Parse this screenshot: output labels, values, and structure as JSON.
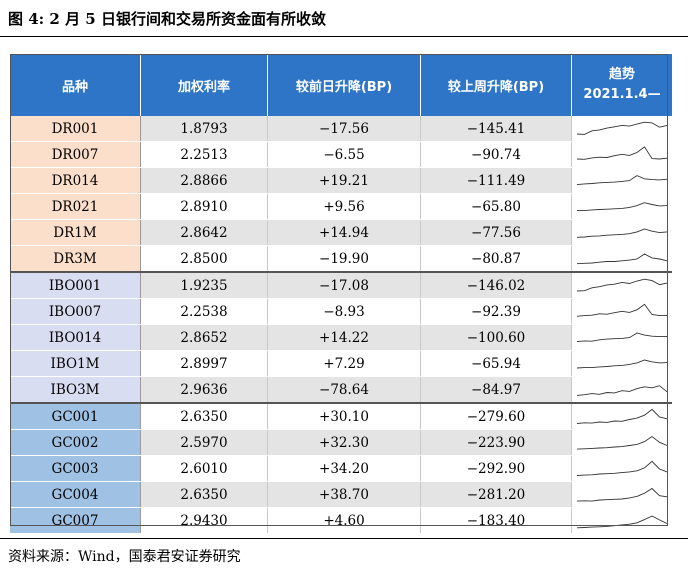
{
  "title": "图 4:  2 月 5 日银行间和交易所资金面有所收敛",
  "source": "资料来源：Wind，国泰君安证券研究",
  "table": {
    "headers": [
      "品种",
      "加权利率",
      "较前日升降(BP)",
      "较上周升降(BP)"
    ],
    "trend_header": {
      "line1": "趋势",
      "line2": "2021.1.4—"
    },
    "rows": [
      {
        "name": "DR001",
        "rate": "1.8793",
        "day_change": "−17.56",
        "week_change": "−145.41",
        "group": "dr"
      },
      {
        "name": "DR007",
        "rate": "2.2513",
        "day_change": "−6.55",
        "week_change": "−90.74",
        "group": "dr"
      },
      {
        "name": "DR014",
        "rate": "2.8866",
        "day_change": "+19.21",
        "week_change": "−111.49",
        "group": "dr"
      },
      {
        "name": "DR021",
        "rate": "2.8910",
        "day_change": "+9.56",
        "week_change": "−65.80",
        "group": "dr"
      },
      {
        "name": "DR1M",
        "rate": "2.8642",
        "day_change": "+14.94",
        "week_change": "−77.56",
        "group": "dr"
      },
      {
        "name": "DR3M",
        "rate": "2.8500",
        "day_change": "−19.90",
        "week_change": "−80.87",
        "group": "dr"
      },
      {
        "name": "IBO001",
        "rate": "1.9235",
        "day_change": "−17.08",
        "week_change": "−146.02",
        "group": "ibo"
      },
      {
        "name": "IBO007",
        "rate": "2.2538",
        "day_change": "−8.93",
        "week_change": "−92.39",
        "group": "ibo"
      },
      {
        "name": "IBO014",
        "rate": "2.8652",
        "day_change": "+14.22",
        "week_change": "−100.60",
        "group": "ibo"
      },
      {
        "name": "IBO1M",
        "rate": "2.8997",
        "day_change": "+7.29",
        "week_change": "−65.94",
        "group": "ibo"
      },
      {
        "name": "IBO3M",
        "rate": "2.9636",
        "day_change": "−78.64",
        "week_change": "−84.97",
        "group": "ibo"
      },
      {
        "name": "GC001",
        "rate": "2.6350",
        "day_change": "+30.10",
        "week_change": "−279.60",
        "group": "gc"
      },
      {
        "name": "GC002",
        "rate": "2.5970",
        "day_change": "+32.30",
        "week_change": "−223.90",
        "group": "gc"
      },
      {
        "name": "GC003",
        "rate": "2.6010",
        "day_change": "+34.20",
        "week_change": "−292.90",
        "group": "gc"
      },
      {
        "name": "GC004",
        "rate": "2.6350",
        "day_change": "+38.70",
        "week_change": "−281.20",
        "group": "gc"
      },
      {
        "name": "GC007",
        "rate": "2.9430",
        "day_change": "+4.60",
        "week_change": "−183.40",
        "group": "gc"
      }
    ]
  },
  "sparklines": [
    [
      0.22,
      0.2,
      0.4,
      0.45,
      0.55,
      0.62,
      0.7,
      0.66,
      0.78,
      0.88,
      0.84,
      0.6,
      0.7
    ],
    [
      0.28,
      0.26,
      0.34,
      0.38,
      0.36,
      0.46,
      0.54,
      0.48,
      0.64,
      0.95,
      0.3,
      0.28,
      0.32
    ],
    [
      0.3,
      0.34,
      0.36,
      0.4,
      0.42,
      0.44,
      0.48,
      0.52,
      0.8,
      0.62,
      0.58,
      0.56,
      0.6
    ],
    [
      0.3,
      0.3,
      0.34,
      0.36,
      0.38,
      0.4,
      0.42,
      0.48,
      0.58,
      0.74,
      0.64,
      0.56,
      0.58
    ],
    [
      0.26,
      0.28,
      0.32,
      0.34,
      0.38,
      0.4,
      0.42,
      0.46,
      0.56,
      0.72,
      0.6,
      0.52,
      0.56
    ],
    [
      0.24,
      0.26,
      0.28,
      0.32,
      0.36,
      0.36,
      0.4,
      0.44,
      0.5,
      0.78,
      0.56,
      0.5,
      0.4
    ],
    [
      0.22,
      0.24,
      0.4,
      0.46,
      0.56,
      0.6,
      0.7,
      0.64,
      0.78,
      0.88,
      0.8,
      0.58,
      0.66
    ],
    [
      0.26,
      0.3,
      0.32,
      0.4,
      0.38,
      0.46,
      0.54,
      0.48,
      0.62,
      0.92,
      0.36,
      0.3,
      0.3
    ],
    [
      0.3,
      0.34,
      0.32,
      0.4,
      0.44,
      0.46,
      0.48,
      0.52,
      0.78,
      0.66,
      0.6,
      0.58,
      0.58
    ],
    [
      0.28,
      0.3,
      0.3,
      0.34,
      0.36,
      0.4,
      0.42,
      0.48,
      0.56,
      0.72,
      0.62,
      0.56,
      0.58
    ],
    [
      0.2,
      0.24,
      0.3,
      0.26,
      0.36,
      0.34,
      0.46,
      0.42,
      0.58,
      0.68,
      0.62,
      0.74,
      0.4
    ],
    [
      0.14,
      0.18,
      0.16,
      0.22,
      0.2,
      0.28,
      0.26,
      0.36,
      0.44,
      0.6,
      0.92,
      0.5,
      0.4
    ],
    [
      0.16,
      0.18,
      0.2,
      0.22,
      0.24,
      0.28,
      0.3,
      0.36,
      0.42,
      0.58,
      0.86,
      0.54,
      0.36
    ],
    [
      0.14,
      0.16,
      0.18,
      0.22,
      0.24,
      0.26,
      0.3,
      0.34,
      0.4,
      0.56,
      0.92,
      0.5,
      0.34
    ],
    [
      0.16,
      0.18,
      0.16,
      0.22,
      0.24,
      0.26,
      0.28,
      0.34,
      0.42,
      0.6,
      0.86,
      0.46,
      0.4
    ],
    [
      0.12,
      0.14,
      0.16,
      0.18,
      0.2,
      0.24,
      0.28,
      0.32,
      0.4,
      0.58,
      0.78,
      0.56,
      0.36
    ]
  ]
}
